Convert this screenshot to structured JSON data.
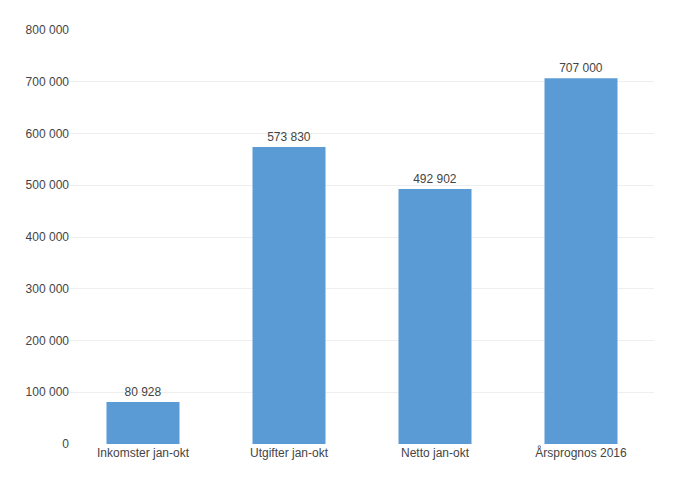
{
  "chart_data": {
    "type": "bar",
    "categories": [
      "Inkomster jan-okt",
      "Utgifter jan-okt",
      "Netto jan-okt",
      "Årsprognos 2016"
    ],
    "values": [
      80928,
      573830,
      492902,
      707000
    ],
    "value_labels": [
      "80 928",
      "573 830",
      "492 902",
      "707 000"
    ],
    "data_labels": true,
    "color": "#5B9BD5",
    "ylim": [
      0,
      800000
    ],
    "yticks": [
      0,
      {
        "value": 100000,
        "label": "100 000"
      },
      {
        "value": 200000,
        "label": "200 000"
      },
      {
        "value": 300000,
        "label": "300 000"
      },
      {
        "value": 400000,
        "label": "400 000"
      },
      {
        "value": 500000,
        "label": "500 000"
      },
      {
        "value": 600000,
        "label": "600 000"
      },
      {
        "value": 700000,
        "label": "700 000"
      },
      {
        "value": 800000,
        "label": "800 000"
      }
    ],
    "grid": true
  }
}
